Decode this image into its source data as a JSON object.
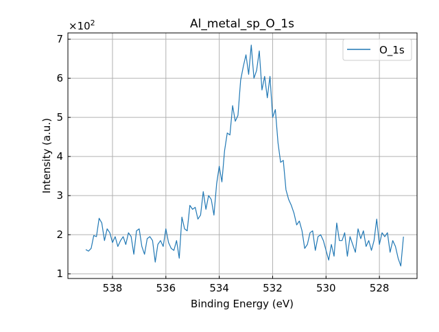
{
  "chart_data": {
    "type": "line",
    "title": "Al_metal_sp_O_1s",
    "xlabel": "Binding Energy (eV)",
    "ylabel": "Intensity (a.u.)",
    "y_multiplier_label": "×10",
    "y_multiplier_exp": "2",
    "xlim": [
      539.67,
      526.59
    ],
    "ylim": [
      0.88,
      7.16
    ],
    "x_ticks": [
      538,
      536,
      534,
      532,
      530,
      528
    ],
    "y_ticks": [
      1,
      2,
      3,
      4,
      5,
      6,
      7
    ],
    "grid": true,
    "legend_position": "top-right",
    "colors": {
      "series": "#1f77b4",
      "grid": "#b0b0b0"
    },
    "series": [
      {
        "name": "O_1s",
        "x_start": 539.0,
        "x_step": -0.1,
        "values": [
          1.62,
          1.58,
          1.65,
          1.98,
          1.95,
          2.42,
          2.3,
          1.85,
          2.15,
          2.05,
          1.8,
          1.95,
          1.7,
          1.85,
          1.95,
          1.75,
          2.05,
          1.95,
          1.5,
          2.1,
          2.15,
          1.7,
          1.5,
          1.9,
          1.95,
          1.85,
          1.3,
          1.75,
          1.85,
          1.7,
          2.15,
          1.8,
          1.65,
          1.6,
          1.85,
          1.4,
          2.45,
          2.15,
          2.1,
          2.75,
          2.65,
          2.7,
          2.4,
          2.5,
          3.1,
          2.65,
          3.0,
          2.9,
          2.5,
          3.3,
          3.75,
          3.35,
          4.15,
          4.6,
          4.55,
          5.3,
          4.9,
          5.05,
          5.95,
          6.3,
          6.6,
          6.1,
          6.85,
          6.0,
          6.2,
          6.7,
          5.7,
          6.05,
          5.5,
          6.05,
          5.0,
          5.2,
          4.35,
          3.85,
          3.9,
          3.15,
          2.9,
          2.75,
          2.55,
          2.25,
          2.35,
          2.1,
          1.65,
          1.75,
          2.05,
          2.1,
          1.6,
          1.95,
          2.0,
          1.85,
          1.6,
          1.35,
          1.75,
          1.45,
          2.3,
          1.85,
          1.85,
          2.05,
          1.45,
          1.95,
          1.75,
          1.55,
          2.15,
          1.9,
          2.1,
          1.7,
          1.85,
          1.6,
          1.85,
          2.4,
          1.75,
          2.05,
          1.95,
          2.05,
          1.55,
          1.85,
          1.7,
          1.4,
          1.2,
          1.95
        ]
      }
    ]
  }
}
